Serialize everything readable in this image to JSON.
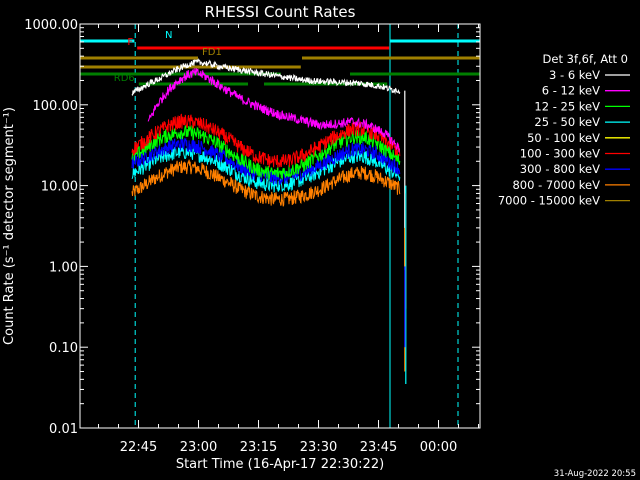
{
  "chart_data": {
    "type": "line",
    "title": "RHESSI Count Rates",
    "xlabel": "Start Time (16-Apr-17 22:30:22)",
    "ylabel": "Count Rate (s⁻¹ detector segment⁻¹)",
    "x_unit": "minutes after 22:30:22",
    "xlim": [
      0,
      100
    ],
    "ylim": [
      0.01,
      1000
    ],
    "yscale": "log",
    "x_ticks": [
      {
        "x": 14.63,
        "label": "22:45"
      },
      {
        "x": 29.63,
        "label": "23:00"
      },
      {
        "x": 44.63,
        "label": "23:15"
      },
      {
        "x": 59.63,
        "label": "23:30"
      },
      {
        "x": 74.63,
        "label": "23:45"
      },
      {
        "x": 89.63,
        "label": "00:00"
      }
    ],
    "y_ticks": [
      {
        "y": 0.01,
        "label": "0.01"
      },
      {
        "y": 0.1,
        "label": "0.10"
      },
      {
        "y": 1,
        "label": "1.00"
      },
      {
        "y": 10,
        "label": "10.00"
      },
      {
        "y": 100,
        "label": "100.00"
      },
      {
        "y": 1000,
        "label": "1000.00"
      }
    ],
    "legend_title": "Det 3f,6f, Att 0",
    "legend_position": "right",
    "series": [
      {
        "name": "3 - 6 keV",
        "color": "#ffffff",
        "x": [
          13,
          15,
          17,
          19,
          21,
          23,
          25,
          27,
          29,
          31,
          33,
          36,
          40,
          45,
          50,
          55,
          60,
          65,
          70,
          75,
          78,
          80
        ],
        "y": [
          140,
          158,
          180,
          200,
          225,
          255,
          285,
          315,
          335,
          330,
          315,
          290,
          270,
          245,
          225,
          205,
          195,
          190,
          185,
          170,
          155,
          150
        ]
      },
      {
        "name": "6 - 12 keV",
        "color": "#ff00ff",
        "x": [
          17,
          19,
          21,
          23,
          25,
          27,
          29,
          31,
          33,
          36,
          40,
          45,
          50,
          55,
          60,
          64,
          68,
          72,
          76,
          79,
          80
        ],
        "y": [
          60,
          95,
          130,
          170,
          205,
          235,
          250,
          230,
          200,
          160,
          120,
          92,
          75,
          65,
          56,
          58,
          62,
          56,
          45,
          32,
          28
        ]
      },
      {
        "name": "12 - 25 keV",
        "color": "#00ff00",
        "x": [
          13,
          16,
          19,
          22,
          25,
          28,
          31,
          34,
          37,
          40,
          44,
          48,
          52,
          56,
          60,
          64,
          68,
          71,
          74,
          77,
          80
        ],
        "y": [
          22,
          28,
          36,
          42,
          46,
          45,
          41,
          34,
          27,
          21,
          16,
          14,
          15,
          18,
          24,
          33,
          40,
          40,
          34,
          26,
          20
        ]
      },
      {
        "name": "25 - 50 keV",
        "color": "#00ffff",
        "x": [
          13,
          16,
          19,
          22,
          25,
          28,
          31,
          34,
          37,
          40,
          44,
          48,
          52,
          56,
          60,
          64,
          68,
          71,
          74,
          77,
          80
        ],
        "y": [
          14,
          17,
          21,
          24,
          26,
          25.5,
          23,
          20,
          16.5,
          13.5,
          11,
          10,
          10.5,
          12,
          15,
          19,
          23,
          23,
          20,
          16,
          13
        ]
      },
      {
        "name": "50 - 100 keV",
        "color": "#ffff00",
        "x": [],
        "y": []
      },
      {
        "name": "100 - 300 keV",
        "color": "#ff0000",
        "x": [
          13,
          16,
          19,
          22,
          25,
          28,
          31,
          34,
          37,
          40,
          44,
          48,
          52,
          56,
          60,
          64,
          68,
          71,
          74,
          77,
          80
        ],
        "y": [
          28,
          35,
          45,
          55,
          62,
          62,
          56,
          47,
          38,
          30,
          23,
          20,
          20,
          24,
          31,
          41,
          50,
          50,
          43,
          34,
          26
        ]
      },
      {
        "name": "300 - 800 keV",
        "color": "#0000ff",
        "x": [
          13,
          16,
          19,
          22,
          25,
          28,
          31,
          34,
          37,
          40,
          44,
          48,
          52,
          56,
          60,
          64,
          68,
          71,
          74,
          77,
          80
        ],
        "y": [
          19,
          22,
          26,
          30,
          33,
          32,
          29,
          25,
          21,
          17,
          14,
          12.5,
          12.5,
          14.5,
          18,
          23,
          28,
          28,
          25,
          20,
          16
        ]
      },
      {
        "name": "800 - 7000 keV",
        "color": "#ff8000",
        "x": [
          13,
          16,
          19,
          22,
          25,
          28,
          31,
          34,
          37,
          40,
          44,
          48,
          52,
          56,
          60,
          64,
          68,
          71,
          74,
          77,
          80
        ],
        "y": [
          8,
          10,
          12.5,
          15,
          17,
          17,
          15.5,
          13,
          11,
          9,
          7.5,
          6.8,
          6.8,
          7.6,
          9,
          11.5,
          14,
          14.5,
          13,
          11,
          9
        ]
      },
      {
        "name": "7000 - 15000 keV",
        "color": "#a08000",
        "x": [],
        "y": []
      }
    ],
    "flag_bars": [
      {
        "label": "N",
        "color": "#00ffff",
        "segments": [
          [
            0,
            13.6
          ],
          [
            77.5,
            100
          ]
        ]
      },
      {
        "label": "F",
        "color": "#ff0000",
        "segments": [
          [
            14.3,
            77.3
          ]
        ]
      },
      {
        "label": "FD1",
        "color": "#a08000",
        "segments": [
          [
            0,
            29.5
          ],
          [
            55.5,
            100
          ]
        ]
      },
      {
        "label": "",
        "color": "#a08000",
        "segments": [
          [
            0,
            55.2
          ]
        ]
      },
      {
        "label": "",
        "color": "#007f00",
        "segments": [
          [
            0,
            50.2
          ],
          [
            67.5,
            100
          ]
        ]
      },
      {
        "label": "RD6",
        "color": "#007f00",
        "segments": [
          [
            14.7,
            42.0
          ],
          [
            46.0,
            76.8
          ]
        ]
      }
    ],
    "vlines": [
      {
        "x": 0,
        "color": "#00ffff",
        "style": "solid"
      },
      {
        "x": 13.8,
        "color": "#00ffff",
        "style": "dash"
      },
      {
        "x": 77.5,
        "color": "#00ffff",
        "style": "solid"
      },
      {
        "x": 94.5,
        "color": "#00ffff",
        "style": "dash"
      }
    ]
  },
  "footer": {
    "timestamp": "31-Aug-2022 20:55"
  }
}
